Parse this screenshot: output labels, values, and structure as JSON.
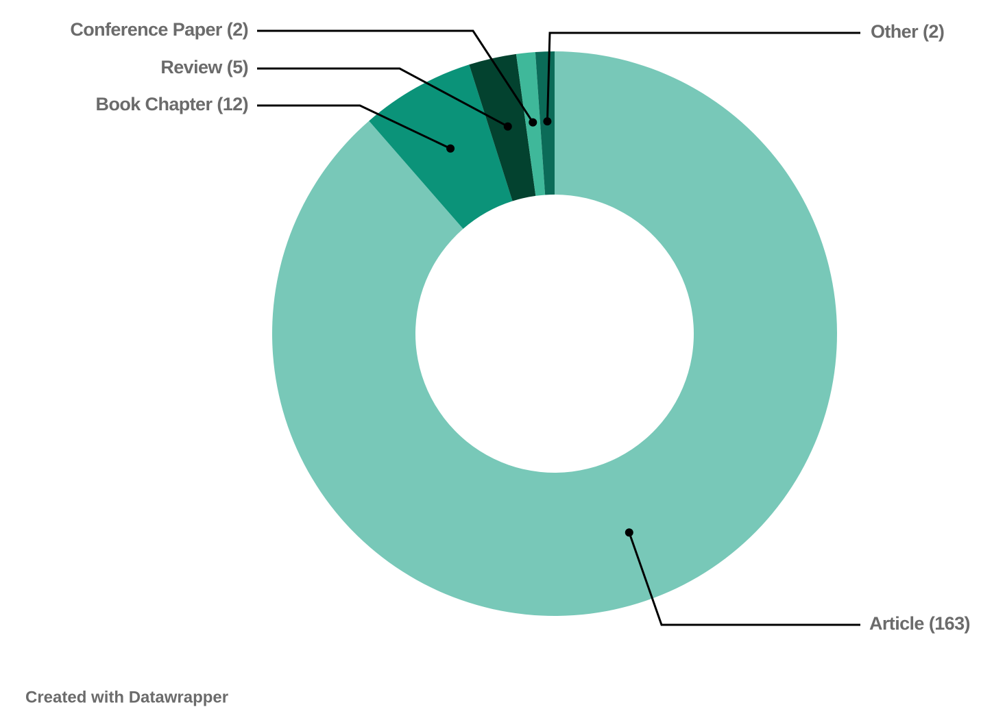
{
  "chart_data": {
    "type": "donut",
    "categories": [
      "Article",
      "Book Chapter",
      "Review",
      "Conference Paper",
      "Other"
    ],
    "values": [
      163,
      12,
      5,
      2,
      2
    ],
    "value_labels": [
      "(163)",
      "(12)",
      "(5)",
      "(2)",
      "(2)"
    ],
    "colors": [
      "#78c8b8",
      "#0b9379",
      "#03422f",
      "#3fb89a",
      "#0b6b58"
    ],
    "credit": "Created with Datawrapper"
  }
}
